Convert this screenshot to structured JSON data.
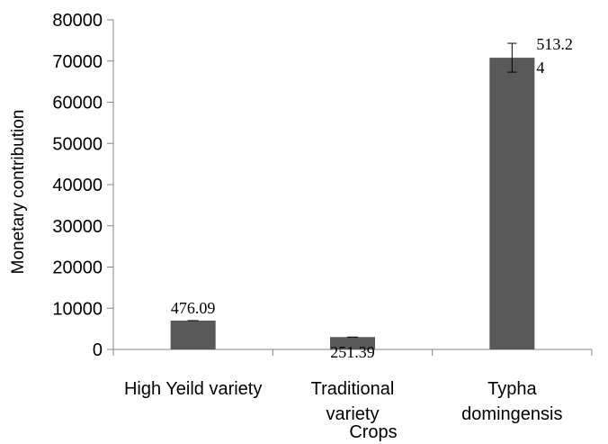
{
  "chart_data": {
    "type": "bar",
    "categories": [
      [
        "High Yeild variety"
      ],
      [
        "Traditional",
        "variety"
      ],
      [
        "Typha",
        "domingensis"
      ]
    ],
    "values": [
      7000,
      3000,
      70800
    ],
    "error_bars": [
      0,
      0,
      3500
    ],
    "data_labels": [
      [
        "476.09"
      ],
      [
        "251.39"
      ],
      [
        "513.2",
        "4"
      ]
    ],
    "xlabel": "Crops",
    "ylabel": "Monetary contribution",
    "ylim": [
      0,
      80000
    ],
    "yticks": [
      0,
      10000,
      20000,
      30000,
      40000,
      50000,
      60000,
      70000,
      80000
    ],
    "grid": false,
    "bar_color": "#595959"
  }
}
